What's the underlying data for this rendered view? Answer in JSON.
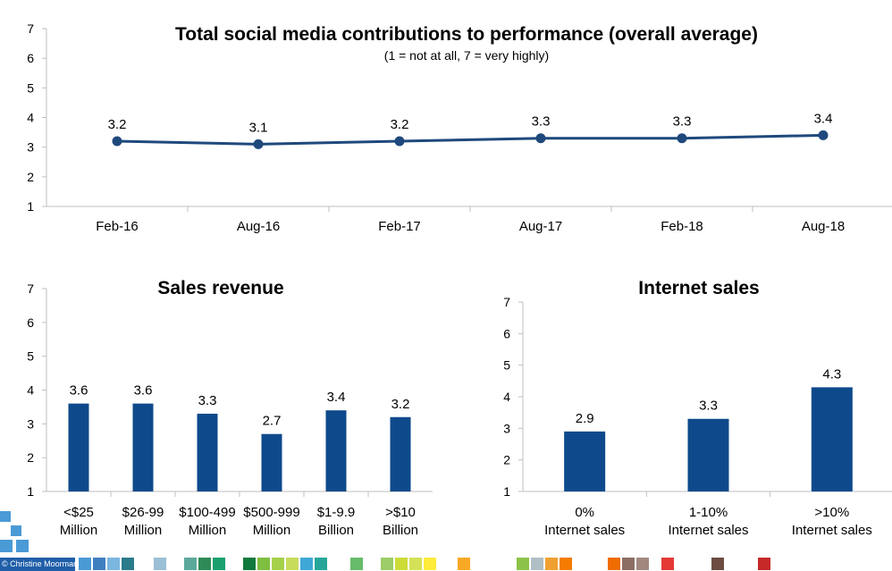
{
  "footer": {
    "credit": "© Christine Moorman"
  },
  "colors": {
    "series": "#1f497d",
    "bars": "#0e4a8b",
    "axis": "#bfbfbf",
    "text": "#000000",
    "decor_squares": [
      "#4a9ad6",
      "#3f7fc0",
      "#7ab6e0",
      "#2a7b8c",
      "#9bbfd4",
      "#5aa99b",
      "#2e8b57",
      "#1aa06e",
      "#0f7a3b",
      "#7fbf3f",
      "#a5d14a",
      "#c8dc5c",
      "#3fa7d6",
      "#26a69a",
      "#66bb6a",
      "#9ccc65",
      "#cddc39",
      "#d4e157",
      "#ffeb3b",
      "#f9a825",
      "#8bc34a",
      "#b0bec5",
      "#f0a030",
      "#f57c00",
      "#ef6c00",
      "#8d6e63",
      "#a1887f",
      "#e53935",
      "#6d4c41",
      "#c62828"
    ]
  },
  "chart_data": [
    {
      "type": "line",
      "title": "Total social media contributions to performance (overall average)",
      "subtitle": "(1 = not at all, 7 = very highly)",
      "categories": [
        "Feb-16",
        "Aug-16",
        "Feb-17",
        "Aug-17",
        "Feb-18",
        "Aug-18"
      ],
      "series": [
        {
          "values": [
            3.2,
            3.1,
            3.2,
            3.3,
            3.3,
            3.4
          ],
          "labels": [
            "3.2",
            "3.1",
            "3.2",
            "3.3",
            "3.3",
            "3.4"
          ]
        }
      ],
      "ylim": [
        1,
        7
      ],
      "yticks": [
        "1",
        "2",
        "3",
        "4",
        "5",
        "6",
        "7"
      ],
      "grid": false
    },
    {
      "type": "bar",
      "title": "Sales revenue",
      "categories": [
        [
          "<$25",
          "Million"
        ],
        [
          "$26-99",
          "Million"
        ],
        [
          "$100-499",
          "Million"
        ],
        [
          "$500-999",
          "Million"
        ],
        [
          "$1-9.9",
          "Billion"
        ],
        [
          ">$10",
          "Billion"
        ]
      ],
      "values": [
        3.6,
        3.6,
        3.3,
        2.7,
        3.4,
        3.2
      ],
      "labels": [
        "3.6",
        "3.6",
        "3.3",
        "2.7",
        "3.4",
        "3.2"
      ],
      "ylim": [
        1,
        7
      ],
      "yticks": [
        "1",
        "2",
        "3",
        "4",
        "5",
        "6",
        "7"
      ],
      "grid": false
    },
    {
      "type": "bar",
      "title": "Internet sales",
      "categories": [
        [
          "0%",
          "Internet sales"
        ],
        [
          "1-10%",
          "Internet sales"
        ],
        [
          ">10%",
          "Internet sales"
        ]
      ],
      "values": [
        2.9,
        3.3,
        4.3
      ],
      "labels": [
        "2.9",
        "3.3",
        "4.3"
      ],
      "ylim": [
        1,
        7
      ],
      "yticks": [
        "1",
        "2",
        "3",
        "4",
        "5",
        "6",
        "7"
      ],
      "grid": false
    }
  ]
}
